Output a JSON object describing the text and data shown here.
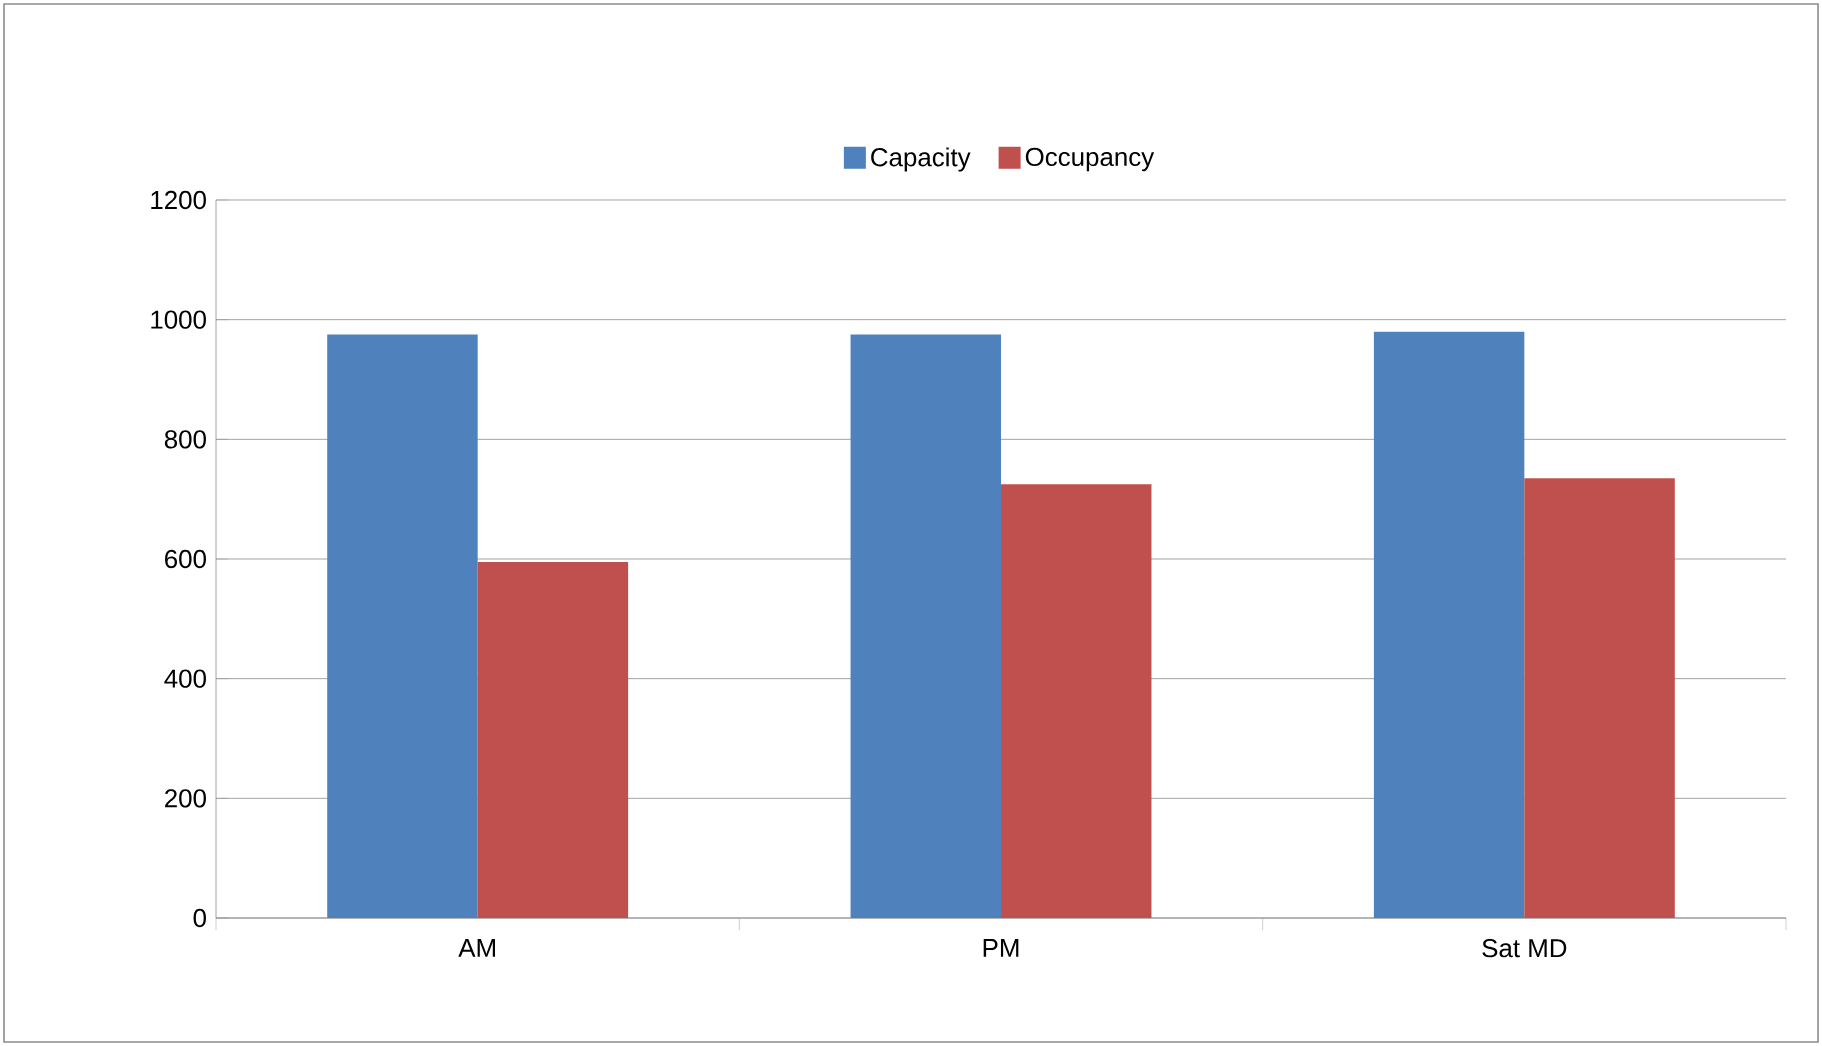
{
  "chart_data": {
    "type": "bar",
    "categories": [
      "AM",
      "PM",
      "Sat MD"
    ],
    "series": [
      {
        "name": "Capacity",
        "color": "#4f81bd",
        "values": [
          975,
          975,
          980
        ]
      },
      {
        "name": "Occupancy",
        "color": "#c0504d",
        "values": [
          595,
          725,
          735
        ]
      }
    ],
    "ylim": [
      0,
      1200
    ],
    "yticks": [
      0,
      200,
      400,
      600,
      800,
      1000,
      1200
    ],
    "grid": "y",
    "legend": "top"
  }
}
